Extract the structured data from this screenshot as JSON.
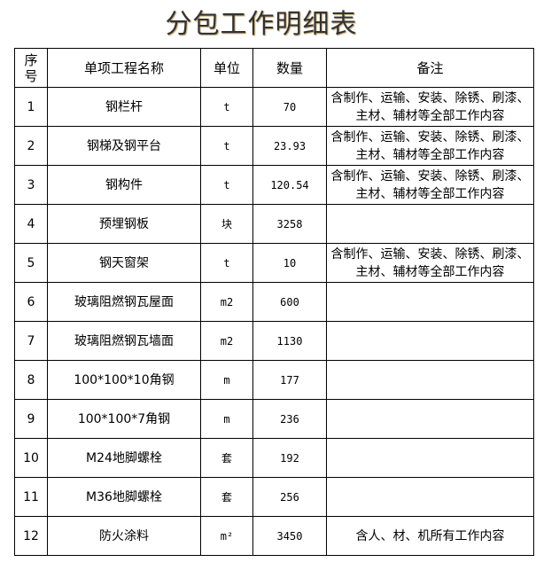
{
  "title": "分包工作明细表",
  "headers": {
    "seq": "序号",
    "name": "单项工程名称",
    "unit": "单位",
    "qty": "数量",
    "note": "备注"
  },
  "rows": [
    {
      "seq": "1",
      "name": "钢栏杆",
      "unit": "t",
      "qty": "70",
      "note": "含制作、运输、安装、除锈、刷漆、主材、辅材等全部工作内容"
    },
    {
      "seq": "2",
      "name": "钢梯及钢平台",
      "unit": "t",
      "qty": "23.93",
      "note": "含制作、运输、安装、除锈、刷漆、主材、辅材等全部工作内容"
    },
    {
      "seq": "3",
      "name": "钢构件",
      "unit": "t",
      "qty": "120.54",
      "note": "含制作、运输、安装、除锈、刷漆、主材、辅材等全部工作内容"
    },
    {
      "seq": "4",
      "name": "预埋钢板",
      "unit": "块",
      "qty": "3258",
      "note": ""
    },
    {
      "seq": "5",
      "name": "钢天窗架",
      "unit": "t",
      "qty": "10",
      "note": "含制作、运输、安装、除锈、刷漆、主材、辅材等全部工作内容"
    },
    {
      "seq": "6",
      "name": "玻璃阻燃钢瓦屋面",
      "unit": "m2",
      "qty": "600",
      "note": ""
    },
    {
      "seq": "7",
      "name": "玻璃阻燃钢瓦墙面",
      "unit": "m2",
      "qty": "1130",
      "note": ""
    },
    {
      "seq": "8",
      "name": "100*100*10角钢",
      "unit": "m",
      "qty": "177",
      "note": ""
    },
    {
      "seq": "9",
      "name": "100*100*7角钢",
      "unit": "m",
      "qty": "236",
      "note": ""
    },
    {
      "seq": "10",
      "name": "M24地脚螺栓",
      "unit": "套",
      "qty": "192",
      "note": ""
    },
    {
      "seq": "11",
      "name": "M36地脚螺栓",
      "unit": "套",
      "qty": "256",
      "note": ""
    },
    {
      "seq": "12",
      "name": "防火涂料",
      "unit": "m²",
      "qty": "3450",
      "note": "含人、材、机所有工作内容"
    }
  ]
}
